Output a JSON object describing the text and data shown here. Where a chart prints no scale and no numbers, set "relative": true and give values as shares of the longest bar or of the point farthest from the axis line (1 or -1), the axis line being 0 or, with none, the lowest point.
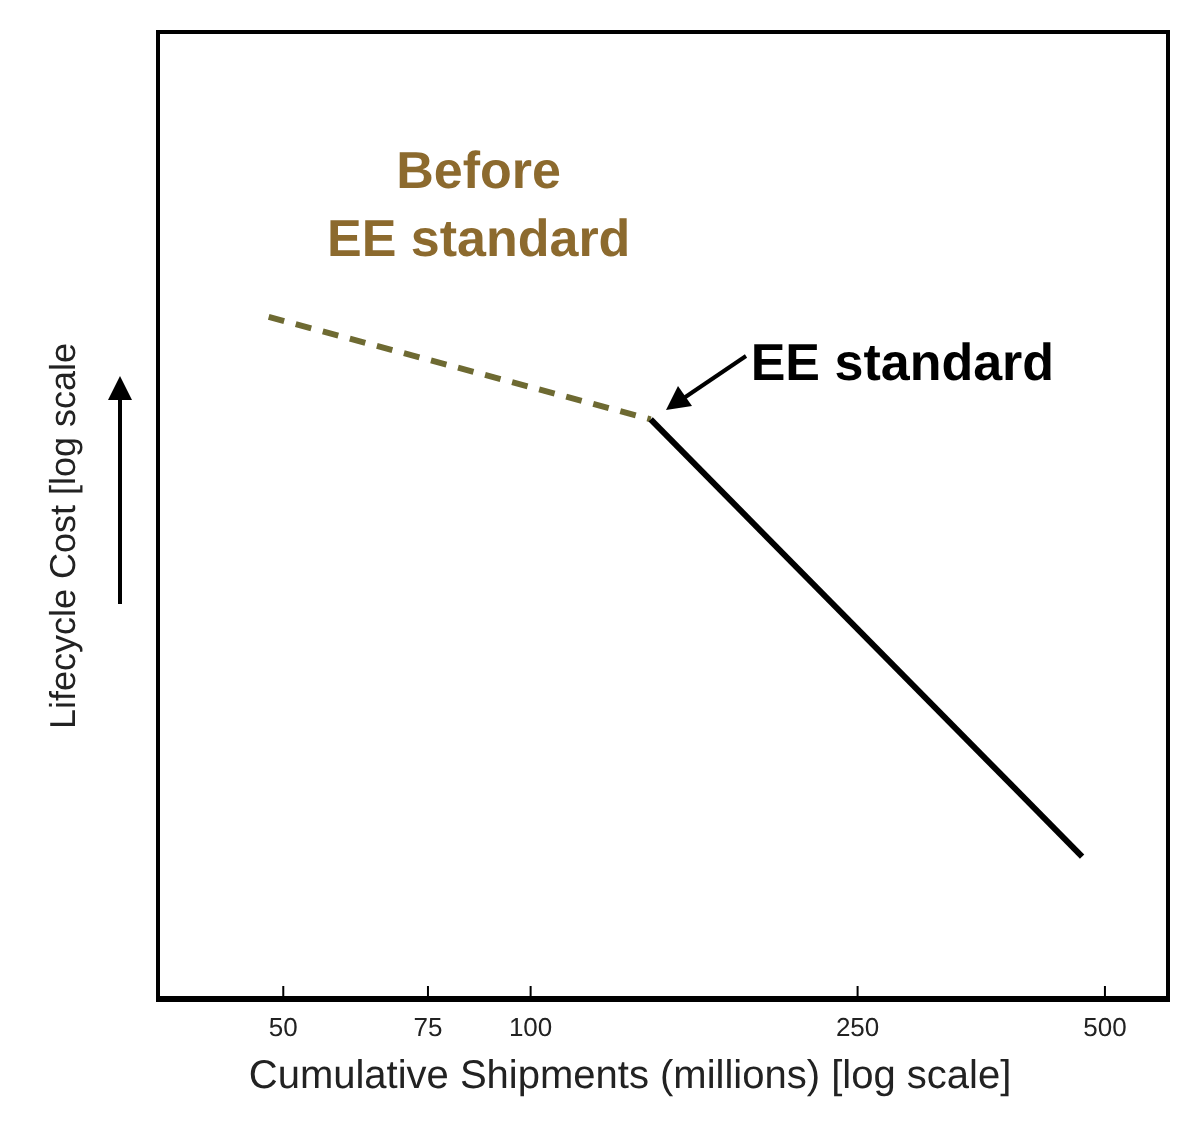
{
  "chart_data": {
    "type": "line",
    "xlabel": "Cumulative Shipments (millions) [log scale]",
    "ylabel": "Lifecycle Cost [log scale",
    "relative": true,
    "log": "x",
    "xlim": [
      35,
      600
    ],
    "xticks": [
      50,
      75,
      100,
      250,
      500
    ],
    "grid": false,
    "marker": "none",
    "series": [
      {
        "name": "Before EE standard",
        "color": "#6e6a32",
        "line_style": "dashed",
        "x": [
          48,
          140
        ],
        "values": [
          1,
          0.85
        ]
      },
      {
        "name": "EE standard",
        "color": "#000000",
        "line_style": "solid",
        "x": [
          140,
          469
        ],
        "values": [
          0.85,
          0.21
        ]
      }
    ]
  }
}
